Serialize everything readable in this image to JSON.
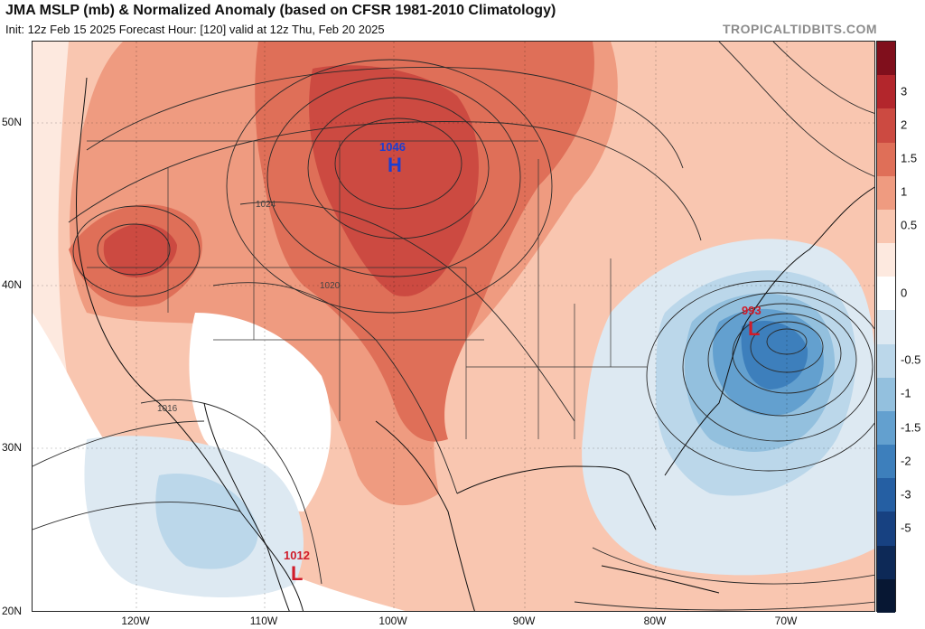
{
  "header": {
    "title": "JMA MSLP (mb) & Normalized Anomaly (based on CFSR 1981-2010 Climatology)",
    "subtitle": "Init: 12z Feb 15 2025   Forecast Hour: [120]   valid at 12z Thu, Feb 20 2025",
    "brand": "TROPICALTIDBITS.COM"
  },
  "colorbar": {
    "labels": [
      "3",
      "2",
      "1.5",
      "1",
      "0.5",
      "0",
      "-0.5",
      "-1",
      "-1.5",
      "-2",
      "-3",
      "-5"
    ],
    "colors": [
      "#800f1c",
      "#b3262c",
      "#cc4a41",
      "#df6f58",
      "#ef9b80",
      "#f9c6b0",
      "#fde9df",
      "#ffffff",
      "#dde9f2",
      "#bbd7ea",
      "#93c0de",
      "#63a0cf",
      "#3d7fbc",
      "#255fa3",
      "#174181",
      "#0d2957",
      "#071733"
    ]
  },
  "axes": {
    "lat_labels": [
      "50N",
      "40N",
      "30N",
      "20N"
    ],
    "lon_labels": [
      "120W",
      "110W",
      "100W",
      "90W",
      "80W",
      "70W"
    ]
  },
  "pressure_centers": [
    {
      "type": "high",
      "letter": "H",
      "value": "1046",
      "color": "#1a3fd1"
    },
    {
      "type": "low",
      "letter": "L",
      "value": "993",
      "color": "#d01c2a"
    },
    {
      "type": "low",
      "letter": "L",
      "value": "1012",
      "color": "#d01c2a"
    }
  ],
  "isobar_labels": [
    "1024",
    "1020",
    "1016"
  ]
}
